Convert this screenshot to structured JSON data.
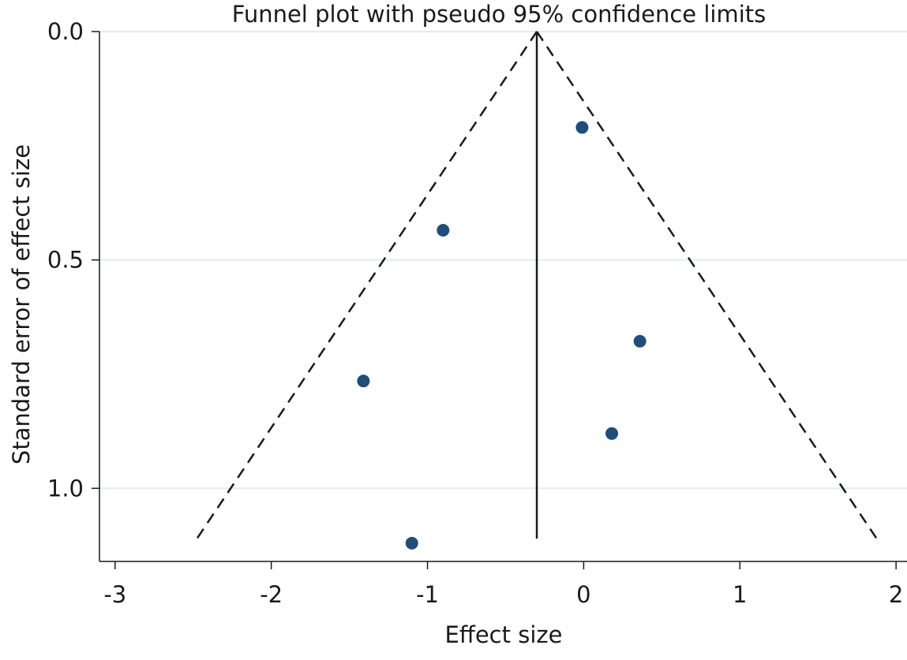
{
  "chart_data": {
    "type": "scatter",
    "title": "Funnel plot with pseudo 95% confidence limits",
    "xlabel": "Effect size",
    "ylabel": "Standard error of effect size",
    "xlim": [
      -3.1,
      2.07
    ],
    "ylim": [
      0,
      1.16
    ],
    "y_reversed": true,
    "grid": true,
    "x_ticks": [
      {
        "value": -3,
        "label": "-3"
      },
      {
        "value": -2,
        "label": "-2"
      },
      {
        "value": -1,
        "label": "-1"
      },
      {
        "value": 0,
        "label": "0"
      },
      {
        "value": 1,
        "label": "1"
      },
      {
        "value": 2,
        "label": "2"
      }
    ],
    "y_ticks": [
      {
        "value": 0,
        "label": "0.0"
      },
      {
        "value": 0.5,
        "label": "0.5"
      },
      {
        "value": 1,
        "label": "1.0"
      }
    ],
    "pooled_effect": -0.3,
    "se_max": 1.11,
    "ci_z": 1.96,
    "points": [
      {
        "x": -0.01,
        "y": 0.21
      },
      {
        "x": -0.9,
        "y": 0.435
      },
      {
        "x": 0.36,
        "y": 0.678
      },
      {
        "x": -1.41,
        "y": 0.765
      },
      {
        "x": 0.18,
        "y": 0.88
      },
      {
        "x": -1.1,
        "y": 1.12
      }
    ],
    "colors": {
      "point": "#1f4e79",
      "grid": "#e3ecef",
      "axis": "#1a1a1a",
      "line": "#1a1a1a"
    }
  }
}
